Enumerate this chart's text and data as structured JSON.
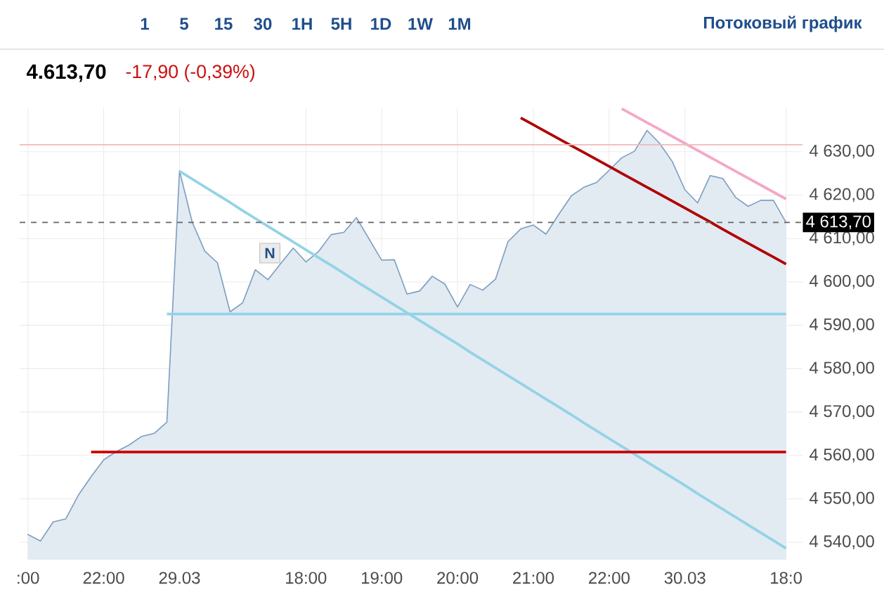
{
  "chart_data": {
    "type": "area",
    "title": "4.613,70",
    "subtitle": "-17,90 (-0,39%)",
    "annotations": [
      "1",
      "5",
      "15",
      "30",
      "1H",
      "5H",
      "1D",
      "1W",
      "1M",
      "Потоковый график",
      "N"
    ],
    "categories": [
      ":00",
      null,
      null,
      null,
      null,
      null,
      "22:00",
      null,
      null,
      null,
      null,
      null,
      "29.03",
      null,
      null,
      null,
      null,
      null,
      null,
      null,
      null,
      null,
      "18:00",
      null,
      null,
      null,
      null,
      null,
      "19:00",
      null,
      null,
      null,
      null,
      null,
      "20:00",
      null,
      null,
      null,
      null,
      null,
      "21:00",
      null,
      null,
      null,
      null,
      null,
      "22:00",
      null,
      null,
      null,
      null,
      null,
      "30.03",
      null,
      null,
      null,
      null,
      null,
      null,
      null,
      "18:0"
    ],
    "ylim": [
      4536,
      4640
    ],
    "yticks": [
      {
        "value": 4540,
        "label": "4 540,00"
      },
      {
        "value": 4550,
        "label": "4 550,00"
      },
      {
        "value": 4560,
        "label": "4 560,00"
      },
      {
        "value": 4570,
        "label": "4 570,00"
      },
      {
        "value": 4580,
        "label": "4 580,00"
      },
      {
        "value": 4590,
        "label": "4 590,00"
      },
      {
        "value": 4600,
        "label": "4 600,00"
      },
      {
        "value": 4610,
        "label": "4 610,00"
      },
      {
        "value": 4620,
        "label": "4 620,00"
      },
      {
        "value": 4630,
        "label": "4 630,00"
      }
    ],
    "grid": true,
    "ref_lines": [
      {
        "axis": "y",
        "value": 4613.7,
        "label": "4 613,70",
        "color": "#666666",
        "line_style": "dashed"
      },
      {
        "axis": "y",
        "value": 4631.6,
        "color": "#f2b8b8"
      }
    ],
    "series": [
      {
        "color": "#7c9ec2",
        "values": [
          4541.8,
          4540.3,
          4544.7,
          4545.4,
          4550.9,
          4555.1,
          4559.0,
          4560.9,
          4562.4,
          4564.4,
          4565.1,
          4567.7,
          4625.6,
          4613.8,
          4607.1,
          4604.4,
          4593.1,
          4595.2,
          4602.8,
          4600.5,
          4604.2,
          4607.8,
          4604.6,
          4607.0,
          4610.9,
          4611.4,
          4614.8,
          4609.9,
          4605.0,
          4605.1,
          4597.2,
          4597.9,
          4601.3,
          4599.5,
          4594.2,
          4599.4,
          4598.1,
          4600.6,
          4609.3,
          4612.2,
          4613.1,
          4611.0,
          4615.5,
          4619.8,
          4621.8,
          4622.9,
          4625.7,
          4628.6,
          4630.1,
          4634.9,
          4631.9,
          4627.7,
          4621.2,
          4618.2,
          4624.5,
          4623.8,
          4619.5,
          4617.4,
          4618.8,
          4618.8,
          4613.7
        ]
      },
      {
        "type": "line",
        "color": "#93d3e6",
        "values": [
          null,
          null,
          null,
          null,
          null,
          null,
          null,
          null,
          null,
          null,
          null,
          null,
          4625.5,
          4623.7,
          4621.9,
          4620.1,
          4618.3,
          4616.4,
          4614.6,
          4612.8,
          4611.0,
          4609.2,
          4607.4,
          4605.6,
          4603.8,
          4602.0,
          4600.1,
          4598.3,
          4596.5,
          4594.7,
          4592.9,
          4591.1,
          4589.3,
          4587.5,
          4585.7,
          4583.8,
          4582.0,
          4580.2,
          4578.4,
          4576.6,
          4574.8,
          4573.0,
          4571.2,
          4569.4,
          4567.5,
          4565.7,
          4563.9,
          4562.1,
          4560.3,
          4558.5,
          4556.7,
          4554.9,
          4553.1,
          4551.2,
          4549.4,
          4547.6,
          4545.8,
          4544.0,
          4542.2,
          4540.4,
          4538.6
        ]
      },
      {
        "type": "line",
        "color": "#93d3e6",
        "values": [
          null,
          null,
          null,
          null,
          null,
          null,
          null,
          null,
          null,
          null,
          null,
          4592.6,
          4592.6,
          4592.6,
          4592.6,
          4592.6,
          4592.6,
          4592.6,
          4592.6,
          4592.6,
          4592.6,
          4592.6,
          4592.6,
          4592.6,
          4592.6,
          4592.6,
          4592.6,
          4592.6,
          4592.6,
          4592.6,
          4592.6,
          4592.6,
          4592.6,
          4592.6,
          4592.6,
          4592.6,
          4592.6,
          4592.6,
          4592.6,
          4592.6,
          4592.6,
          4592.6,
          4592.6,
          4592.6,
          4592.6,
          4592.6,
          4592.6,
          4592.6,
          4592.6,
          4592.6,
          4592.6,
          4592.6,
          4592.6,
          4592.6,
          4592.6,
          4592.6,
          4592.6,
          4592.6,
          4592.6,
          4592.6,
          4592.6
        ]
      },
      {
        "type": "line",
        "color": "#cc0000",
        "values": [
          null,
          null,
          null,
          null,
          null,
          4560.8,
          4560.8,
          4560.8,
          4560.8,
          4560.8,
          4560.8,
          4560.8,
          4560.8,
          4560.8,
          4560.8,
          4560.8,
          4560.8,
          4560.8,
          4560.8,
          4560.8,
          4560.8,
          4560.8,
          4560.8,
          4560.8,
          4560.8,
          4560.8,
          4560.8,
          4560.8,
          4560.8,
          4560.8,
          4560.8,
          4560.8,
          4560.8,
          4560.8,
          4560.8,
          4560.8,
          4560.8,
          4560.8,
          4560.8,
          4560.8,
          4560.8,
          4560.8,
          4560.8,
          4560.8,
          4560.8,
          4560.8,
          4560.8,
          4560.8,
          4560.8,
          4560.8,
          4560.8,
          4560.8,
          4560.8,
          4560.8,
          4560.8,
          4560.8,
          4560.8,
          4560.8,
          4560.8,
          4560.8,
          4560.8
        ]
      },
      {
        "type": "line",
        "color": "#b00000",
        "values": [
          null,
          null,
          null,
          null,
          null,
          null,
          null,
          null,
          null,
          null,
          null,
          null,
          null,
          null,
          null,
          null,
          null,
          null,
          null,
          null,
          null,
          null,
          null,
          null,
          null,
          null,
          null,
          null,
          null,
          null,
          null,
          null,
          null,
          null,
          null,
          null,
          null,
          null,
          null,
          4637.8,
          4636.2,
          4634.6,
          4633.0,
          4631.4,
          4629.8,
          4628.2,
          4626.6,
          4625.0,
          4623.4,
          4621.8,
          4620.2,
          4618.6,
          4617.0,
          4615.4,
          4613.8,
          4612.1,
          4610.5,
          4608.9,
          4607.3,
          4605.7,
          4604.1
        ]
      },
      {
        "type": "line",
        "color": "#f4a7c7",
        "values": [
          null,
          null,
          null,
          null,
          null,
          null,
          null,
          null,
          null,
          null,
          null,
          null,
          null,
          null,
          null,
          null,
          null,
          null,
          null,
          null,
          null,
          null,
          null,
          null,
          null,
          null,
          null,
          null,
          null,
          null,
          null,
          null,
          null,
          null,
          null,
          null,
          null,
          null,
          null,
          null,
          null,
          null,
          null,
          null,
          null,
          null,
          null,
          4639.9,
          4638.3,
          4636.7,
          4635.1,
          4633.5,
          4631.9,
          4630.3,
          4628.7,
          4627.1,
          4625.5,
          4623.9,
          4622.3,
          4620.7,
          4619.1
        ]
      }
    ]
  }
}
